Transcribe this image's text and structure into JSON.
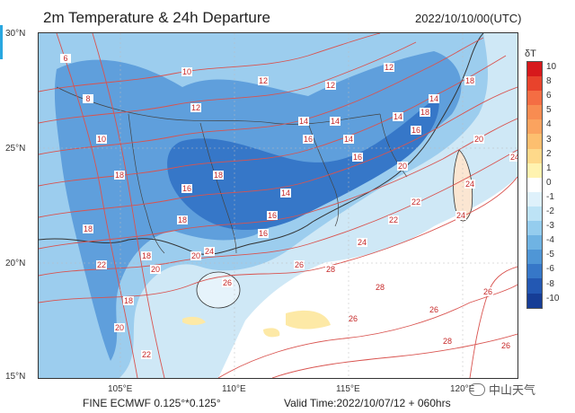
{
  "header": {
    "title": "2m Temperature & 24h Departure",
    "datetime": "2022/10/10/00(UTC)"
  },
  "axes": {
    "lat_labels": [
      "30°N",
      "25°N",
      "20°N",
      "15°N"
    ],
    "lon_labels": [
      "105°E",
      "110°E",
      "115°E",
      "120°E"
    ]
  },
  "legend": {
    "title": "δT",
    "levels": [
      "10",
      "8",
      "6",
      "5",
      "4",
      "3",
      "2",
      "1",
      "0",
      "-1",
      "-2",
      "-3",
      "-4",
      "-5",
      "-6",
      "-8",
      "-10"
    ],
    "colors": [
      "#d7191c",
      "#e8432c",
      "#f46d43",
      "#f88c51",
      "#fba35f",
      "#fdbf6f",
      "#fed98a",
      "#fff3b0",
      "#ffffff",
      "#dff1fb",
      "#bde3f6",
      "#95cdee",
      "#6fb3e3",
      "#4f96d6",
      "#3677c8",
      "#2358b3",
      "#163d96"
    ]
  },
  "contour_labels": [
    "6",
    "8",
    "10",
    "10",
    "12",
    "12",
    "12",
    "12",
    "14",
    "14",
    "14",
    "14",
    "14",
    "14",
    "16",
    "16",
    "16",
    "16",
    "16",
    "16",
    "18",
    "18",
    "18",
    "18",
    "18",
    "18",
    "18",
    "18",
    "20",
    "20",
    "20",
    "20",
    "20",
    "22",
    "22",
    "22",
    "22",
    "24",
    "24",
    "24",
    "24",
    "24",
    "26",
    "26",
    "26",
    "26",
    "26",
    "26",
    "28",
    "28",
    "28"
  ],
  "footer": {
    "model": "FINE ECMWF 0.125°*0.125°",
    "valid": "Valid Time:2022/10/07/12 + 060hrs"
  },
  "watermark": {
    "text": "中山天气"
  },
  "colors": {
    "cold_anomaly": "#3677c8",
    "contour": "#c62828",
    "boundary": "#333333"
  }
}
